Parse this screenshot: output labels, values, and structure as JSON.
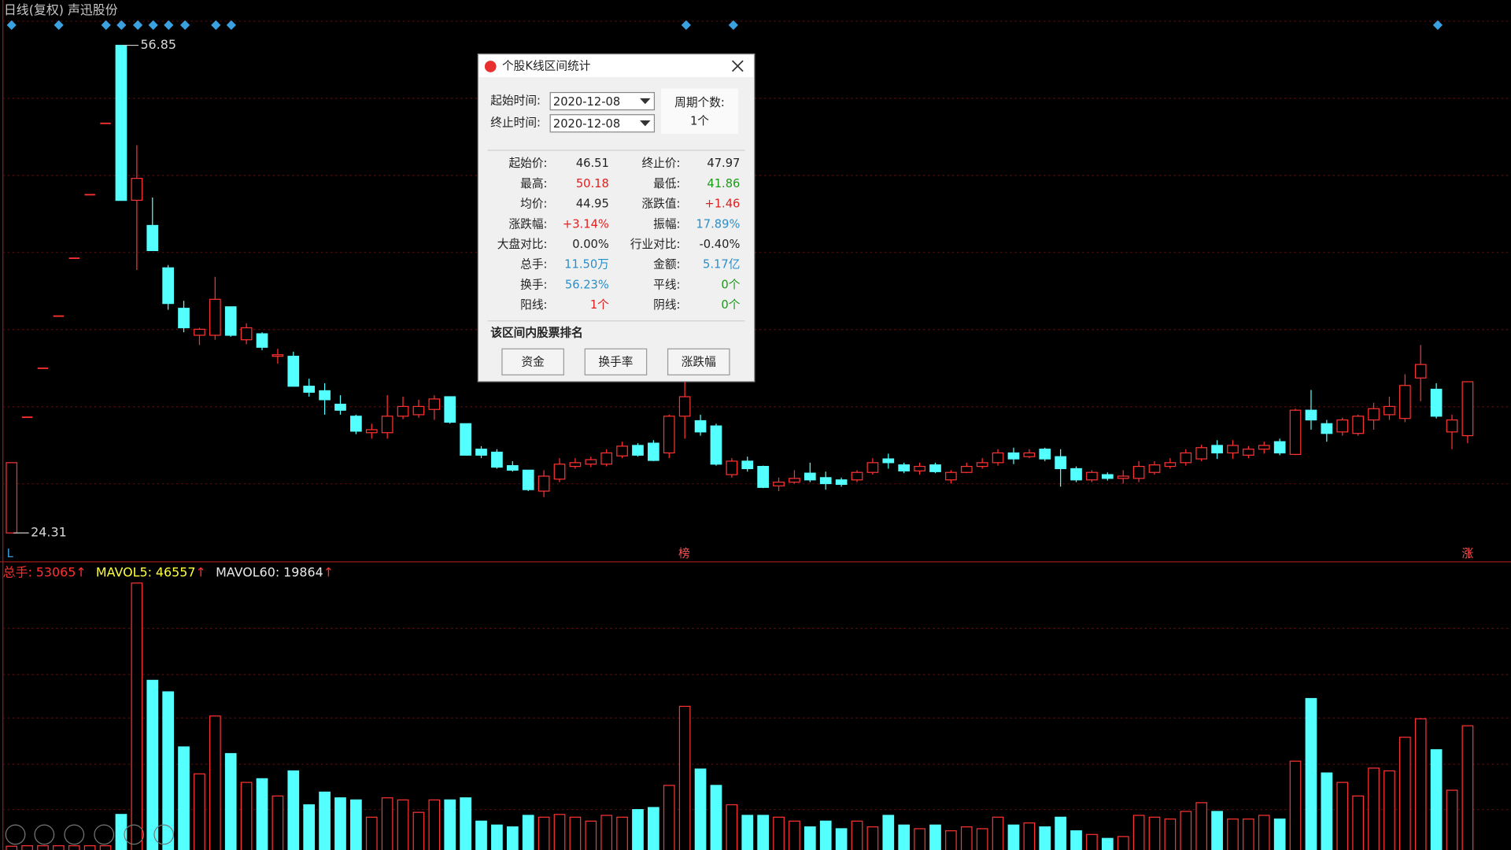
{
  "chart_data": [
    {
      "type": "candlestick",
      "title": "日线(复权) 声迅股份",
      "price_high": 56.85,
      "price_low": 24.31,
      "up_color": "#ff3232",
      "down_color": "#54ffff",
      "annotations": [
        "L",
        "榜",
        "涨"
      ],
      "open": [
        24.31,
        32.03,
        35.3,
        38.78,
        42.64,
        46.88,
        51.64,
        56.85,
        46.51,
        44.83,
        42.0,
        39.3,
        37.5,
        37.5,
        39.4,
        37.2,
        37.6,
        36.1,
        36.1,
        34.1,
        33.8,
        32.9,
        32.1,
        31.0,
        31.0,
        32.1,
        32.2,
        32.55,
        33.4,
        31.6,
        29.9,
        29.7,
        28.8,
        28.5,
        27.1,
        27.9,
        28.75,
        28.9,
        28.9,
        29.45,
        30.15,
        30.3,
        29.65,
        32.1,
        31.8,
        31.45,
        28.2,
        29.1,
        28.75,
        27.45,
        27.7,
        28.3,
        28.0,
        27.85,
        27.85,
        28.35,
        29.25,
        28.85,
        28.45,
        28.85,
        27.85,
        28.35,
        28.75,
        29.0,
        29.65,
        29.4,
        29.9,
        29.4,
        28.6,
        27.85,
        28.2,
        27.95,
        27.95,
        28.35,
        28.75,
        29.0,
        29.25,
        30.15,
        29.65,
        29.5,
        29.9,
        30.4,
        29.55,
        32.5,
        31.6,
        31.05,
        30.95,
        31.85,
        32.2,
        31.95,
        34.65,
        33.9,
        31.05,
        30.8
      ],
      "high": [
        29.0,
        32.03,
        35.3,
        38.78,
        42.64,
        46.88,
        51.64,
        56.85,
        50.18,
        46.69,
        42.19,
        39.8,
        38.0,
        41.4,
        39.4,
        38.3,
        37.7,
        36.6,
        36.4,
        34.6,
        34.3,
        33.5,
        32.2,
        31.6,
        33.5,
        33.4,
        33.2,
        33.5,
        33.4,
        31.6,
        30.1,
        29.9,
        29.1,
        28.5,
        28.5,
        29.3,
        29.3,
        29.4,
        29.9,
        30.4,
        30.3,
        30.5,
        32.2,
        34.4,
        32.2,
        31.6,
        29.3,
        29.4,
        28.8,
        28.0,
        28.5,
        29.0,
        28.4,
        28.0,
        28.5,
        29.3,
        29.6,
        29.0,
        29.0,
        29.0,
        28.5,
        29.0,
        29.3,
        29.9,
        30.0,
        29.9,
        30.0,
        29.9,
        28.75,
        28.5,
        28.35,
        28.5,
        29.1,
        29.1,
        29.3,
        29.9,
        30.2,
        30.5,
        30.5,
        30.1,
        30.4,
        30.6,
        32.6,
        33.85,
        31.85,
        32.0,
        32.2,
        33.0,
        33.4,
        34.9,
        36.85,
        34.3,
        32.2,
        34.4
      ],
      "low": [
        24.31,
        32.03,
        35.3,
        38.78,
        42.64,
        46.88,
        51.64,
        46.5,
        41.86,
        43.15,
        39.2,
        37.7,
        36.85,
        37.2,
        37.4,
        36.9,
        36.5,
        35.6,
        34.1,
        33.4,
        32.2,
        32.2,
        30.9,
        30.6,
        30.6,
        31.9,
        32.0,
        31.85,
        31.6,
        29.5,
        29.3,
        28.6,
        28.4,
        27.1,
        26.7,
        27.7,
        28.6,
        28.7,
        28.75,
        29.3,
        29.4,
        29.1,
        29.3,
        30.6,
        30.8,
        28.8,
        28.0,
        28.4,
        27.3,
        27.1,
        27.6,
        27.7,
        27.2,
        27.4,
        27.7,
        28.2,
        28.6,
        28.3,
        28.2,
        28.3,
        27.6,
        28.3,
        28.6,
        28.8,
        28.9,
        29.3,
        29.1,
        27.4,
        27.7,
        27.7,
        27.8,
        27.6,
        27.7,
        28.2,
        28.6,
        28.8,
        29.1,
        29.25,
        29.25,
        29.3,
        29.6,
        29.5,
        29.5,
        31.2,
        30.4,
        30.8,
        30.8,
        31.2,
        31.85,
        31.7,
        33.1,
        31.95,
        29.9,
        30.3
      ],
      "close": [
        29.0,
        32.03,
        35.3,
        38.78,
        42.64,
        46.88,
        51.64,
        46.5,
        47.97,
        43.15,
        39.62,
        38.0,
        37.9,
        39.9,
        37.5,
        38.0,
        36.7,
        36.2,
        34.1,
        33.7,
        33.2,
        32.5,
        31.1,
        31.2,
        32.1,
        32.75,
        32.75,
        33.25,
        31.7,
        29.5,
        29.5,
        28.7,
        28.5,
        27.2,
        28.1,
        28.9,
        29.0,
        29.2,
        29.65,
        30.1,
        29.5,
        29.15,
        32.1,
        33.4,
        31.05,
        28.9,
        29.1,
        28.6,
        27.35,
        27.7,
        27.95,
        27.85,
        27.6,
        27.55,
        28.35,
        29.0,
        29.0,
        28.45,
        28.75,
        28.4,
        28.35,
        28.75,
        29.0,
        29.65,
        29.25,
        29.65,
        29.25,
        28.6,
        27.85,
        28.35,
        27.95,
        28.1,
        28.75,
        28.85,
        29.0,
        29.65,
        30.0,
        29.65,
        30.15,
        29.9,
        30.15,
        29.65,
        32.5,
        31.85,
        30.95,
        31.85,
        32.1,
        32.6,
        32.75,
        34.15,
        35.55,
        32.1,
        31.85,
        34.4
      ]
    },
    {
      "type": "bar",
      "legend": [
        {
          "label": "总手:",
          "value": "53065",
          "arrow": "↑",
          "color": "#ff3030"
        },
        {
          "label": "MAVOL5:",
          "value": "46557",
          "arrow": "↑",
          "color": "#ffff40"
        },
        {
          "label": "MAVOL60:",
          "value": "19864",
          "arrow": "↑",
          "color": "#e8e8e8"
        }
      ],
      "arrow_color": "#ff3030",
      "values": [
        800,
        1000,
        1000,
        1000,
        1000,
        1000,
        1000,
        14600,
        115000,
        72800,
        67800,
        43900,
        32200,
        57300,
        41000,
        28500,
        30100,
        22600,
        33500,
        18800,
        24300,
        21800,
        20900,
        13400,
        21800,
        20900,
        15500,
        20900,
        20900,
        21800,
        11700,
        10000,
        9200,
        14200,
        13400,
        14600,
        13400,
        11700,
        14200,
        13400,
        16700,
        17600,
        27200,
        61500,
        34300,
        27200,
        18800,
        14200,
        14200,
        13400,
        11700,
        9200,
        11700,
        8400,
        11700,
        9200,
        14200,
        10000,
        8400,
        10000,
        7500,
        9200,
        8400,
        13400,
        10000,
        10900,
        9200,
        13400,
        7500,
        5900,
        4200,
        5000,
        14200,
        13400,
        12600,
        15900,
        19700,
        15900,
        12600,
        12600,
        14200,
        12600,
        37700,
        64900,
        32600,
        28500,
        22600,
        34700,
        33500,
        48100,
        56100,
        42700,
        25100,
        53065
      ]
    }
  ],
  "dialog": {
    "title": "个股K线区间统计",
    "start_label": "起始时间:",
    "start_date": "2020-12-08",
    "end_label": "终止时间:",
    "end_date": "2020-12-08",
    "period_label": "周期个数:",
    "period_value": "1个",
    "stats": [
      [
        {
          "label": "起始价:",
          "value": "46.51",
          "color": "#222222"
        },
        {
          "label": "终止价:",
          "value": "47.97",
          "color": "#222222"
        }
      ],
      [
        {
          "label": "最高:",
          "value": "50.18",
          "color": "#e02020"
        },
        {
          "label": "最低:",
          "value": "41.86",
          "color": "#1a9a1a"
        }
      ],
      [
        {
          "label": "均价:",
          "value": "44.95",
          "color": "#222222"
        },
        {
          "label": "涨跌值:",
          "value": "+1.46",
          "color": "#e02020"
        }
      ],
      [
        {
          "label": "涨跌幅:",
          "value": "+3.14%",
          "color": "#e02020"
        },
        {
          "label": "振幅:",
          "value": "17.89%",
          "color": "#2a8fc8"
        }
      ],
      [
        {
          "label": "大盘对比:",
          "value": "0.00%",
          "color": "#222222"
        },
        {
          "label": "行业对比:",
          "value": "-0.40%",
          "color": "#222222"
        }
      ],
      [
        {
          "label": "总手:",
          "value": "11.50万",
          "color": "#2a8fc8"
        },
        {
          "label": "金额:",
          "value": "5.17亿",
          "color": "#2a8fc8"
        }
      ],
      [
        {
          "label": "换手:",
          "value": "56.23%",
          "color": "#2a8fc8"
        },
        {
          "label": "平线:",
          "value": "0个",
          "color": "#1a9a1a"
        }
      ],
      [
        {
          "label": "阳线:",
          "value": "1个",
          "color": "#e02020"
        },
        {
          "label": "阴线:",
          "value": "0个",
          "color": "#1a9a1a"
        }
      ]
    ],
    "ranking_title": "该区间内股票排名",
    "buttons": [
      "资金",
      "换手率",
      "涨跌幅"
    ]
  }
}
